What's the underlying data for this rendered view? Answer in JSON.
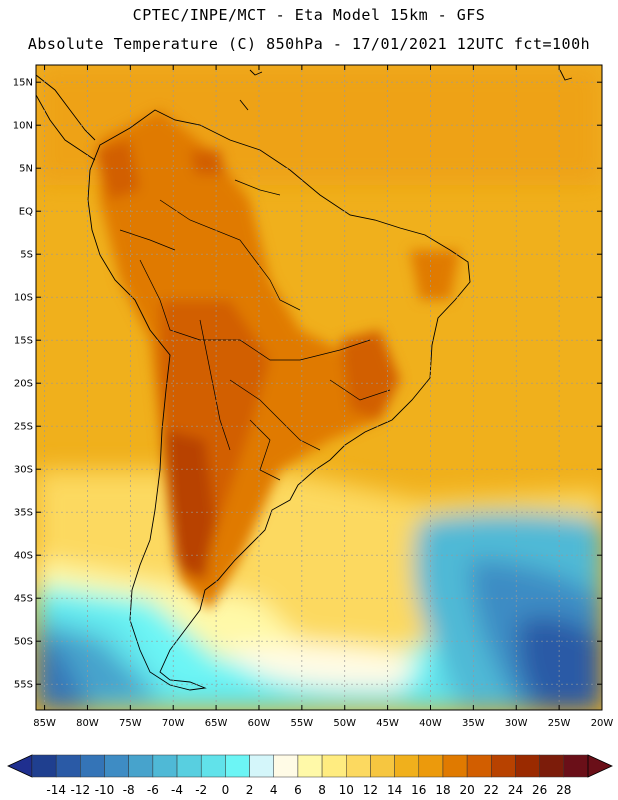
{
  "title_line1": "CPTEC/INPE/MCT -  Eta Model 15km - GFS",
  "title_line2": "Absolute Temperature (C) 850hPa - 17/01/2021 12UTC fct=100h",
  "lat_ticks": [
    "15N",
    "10N",
    "5N",
    "EQ",
    "5S",
    "10S",
    "15S",
    "20S",
    "25S",
    "30S",
    "35S",
    "40S",
    "45S",
    "50S",
    "55S"
  ],
  "lat_values": [
    15,
    10,
    5,
    0,
    -5,
    -10,
    -15,
    -20,
    -25,
    -30,
    -35,
    -40,
    -45,
    -50,
    -55
  ],
  "lon_ticks": [
    "85W",
    "80W",
    "75W",
    "70W",
    "65W",
    "60W",
    "55W",
    "50W",
    "45W",
    "40W",
    "35W",
    "30W",
    "25W",
    "20W"
  ],
  "lon_values": [
    -85,
    -80,
    -75,
    -70,
    -65,
    -60,
    -55,
    -50,
    -45,
    -40,
    -35,
    -30,
    -25,
    -20
  ],
  "map_extent": {
    "lon_min": -86,
    "lon_max": -20,
    "lat_min": -58,
    "lat_max": 17
  },
  "colorbar": {
    "labels": [
      "-14",
      "-12",
      "-10",
      "-8",
      "-6",
      "-4",
      "-2",
      "0",
      "2",
      "4",
      "6",
      "8",
      "10",
      "12",
      "14",
      "16",
      "18",
      "20",
      "22",
      "24",
      "26",
      "28"
    ],
    "colors": [
      "#1f3f8f",
      "#2a5aa6",
      "#3474b7",
      "#3e8cc4",
      "#47a3cc",
      "#4fb9d6",
      "#58cfe0",
      "#61e2ea",
      "#6cf5f5",
      "#d4f6fa",
      "#fffbe6",
      "#fff9a8",
      "#ffec80",
      "#fcd960",
      "#f6c640",
      "#f0b01c",
      "#ec9a0c",
      "#e07a00",
      "#d25e00",
      "#b84200",
      "#9a2a00",
      "#7c1c0a",
      "#6a0f18"
    ],
    "under_color": "#1f2f8f",
    "over_color": "#6a0f18"
  },
  "colors": {
    "ocean_warm": "#f0b01c",
    "land_hot": "#d25e00",
    "ocean_cold": "#3474b7"
  }
}
